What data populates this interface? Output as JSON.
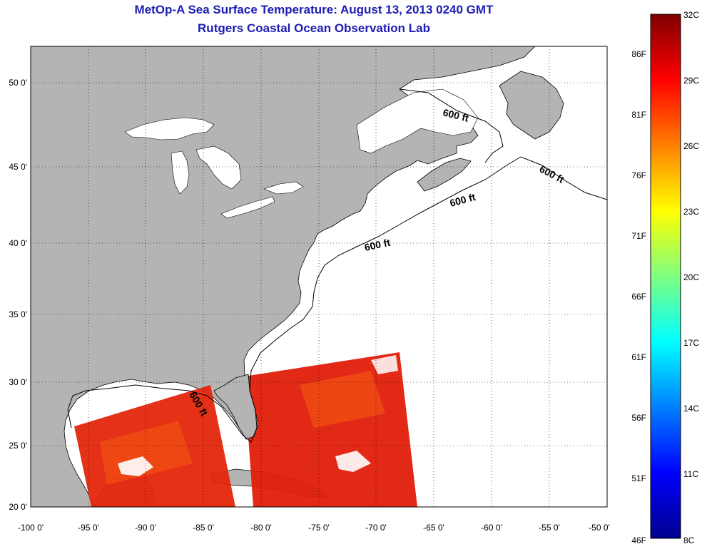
{
  "header": {
    "title": "MetOp-A Sea Surface Temperature:  August 13, 2013 0240 GMT",
    "subtitle": "Rutgers Coastal Ocean Observation Lab"
  },
  "map": {
    "lon_range": [
      -100,
      -50
    ],
    "lat_range": [
      20,
      52.5
    ],
    "x_ticks": [
      "-100 0'",
      "-95 0'",
      "-90 0'",
      "-85 0'",
      "-80 0'",
      "-75 0'",
      "-70 0'",
      "-65 0'",
      "-60 0'",
      "-55 0'",
      "-50 0'"
    ],
    "y_ticks": [
      "20 0'",
      "25 0'",
      "30 0'",
      "35 0'",
      "40 0'",
      "45 0'",
      "50 0'"
    ],
    "contour_label": "600 ft",
    "colors": {
      "land": "#b4b4b4",
      "water": "#ffffff",
      "sst_hot": "#e01e0a",
      "sst_warm": "#f04a10"
    }
  },
  "colorbar": {
    "range_c": [
      8,
      32
    ],
    "celsius_labels": [
      "32C",
      "29C",
      "26C",
      "23C",
      "20C",
      "17C",
      "14C",
      "11C",
      "8C"
    ],
    "fahrenheit_labels": [
      "86F",
      "81F",
      "76F",
      "71F",
      "66F",
      "61F",
      "56F",
      "51F",
      "46F"
    ]
  }
}
